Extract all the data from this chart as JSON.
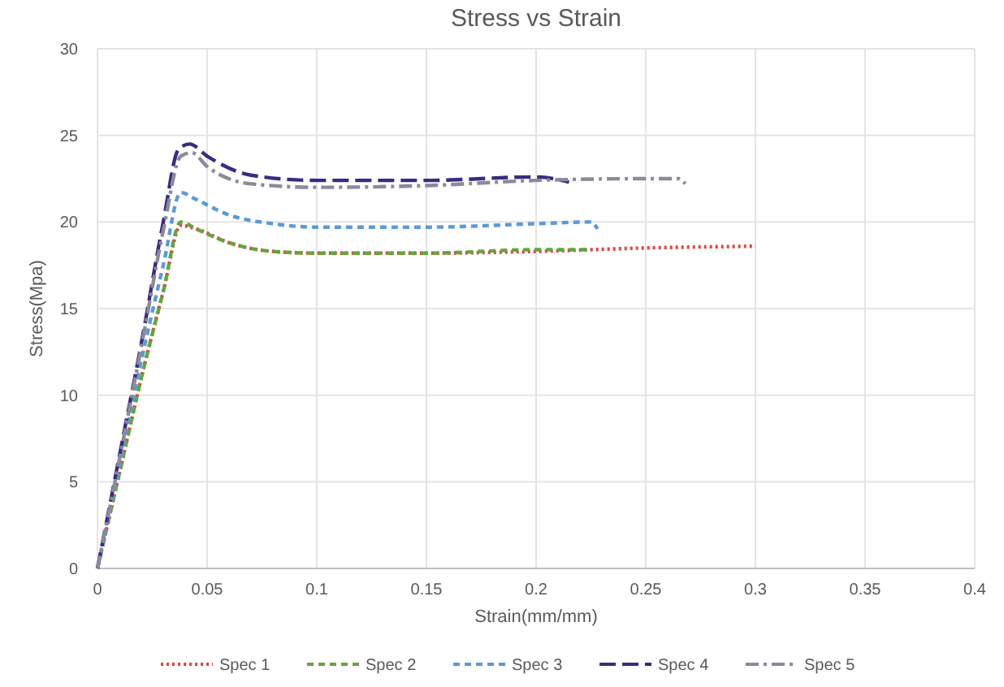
{
  "chart_data": {
    "type": "line",
    "title": "Stress vs Strain",
    "xlabel": "Strain(mm/mm)",
    "ylabel": "Stress(Mpa)",
    "xlim": [
      0,
      0.4
    ],
    "xticks": [
      0,
      0.05,
      0.1,
      0.15,
      0.2,
      0.25,
      0.3,
      0.35,
      0.4
    ],
    "ylim": [
      0,
      30
    ],
    "yticks": [
      0,
      5,
      10,
      15,
      20,
      25,
      30
    ],
    "grid": true,
    "legend": "bottom",
    "series": [
      {
        "name": "Spec 1",
        "color": "#e0443c",
        "line_style": "dotted",
        "x": [
          0,
          0.01,
          0.02,
          0.03,
          0.038,
          0.045,
          0.06,
          0.08,
          0.1,
          0.15,
          0.2,
          0.25,
          0.3
        ],
        "values": [
          0,
          5.5,
          11,
          16,
          19.8,
          19.6,
          18.8,
          18.3,
          18.2,
          18.2,
          18.3,
          18.5,
          18.6
        ]
      },
      {
        "name": "Spec 2",
        "color": "#5fa83a",
        "line_style": "dashed",
        "x": [
          0,
          0.01,
          0.02,
          0.03,
          0.038,
          0.045,
          0.06,
          0.08,
          0.1,
          0.15,
          0.2,
          0.225
        ],
        "values": [
          0,
          5.5,
          11,
          16,
          20,
          19.6,
          18.8,
          18.3,
          18.2,
          18.2,
          18.4,
          18.4
        ]
      },
      {
        "name": "Spec 3",
        "color": "#5b9bd5",
        "line_style": "dashed",
        "x": [
          0,
          0.01,
          0.02,
          0.03,
          0.038,
          0.045,
          0.06,
          0.08,
          0.1,
          0.15,
          0.2,
          0.225,
          0.228
        ],
        "values": [
          0,
          6,
          12,
          17.5,
          21.7,
          21.3,
          20.4,
          19.9,
          19.7,
          19.7,
          19.9,
          20,
          19.6
        ]
      },
      {
        "name": "Spec 4",
        "color": "#3b2a80",
        "line_style": "longdash",
        "x": [
          0,
          0.01,
          0.02,
          0.03,
          0.037,
          0.042,
          0.05,
          0.07,
          0.1,
          0.15,
          0.2,
          0.215
        ],
        "values": [
          0,
          6.5,
          13,
          20,
          24.2,
          24.5,
          23.8,
          22.7,
          22.4,
          22.4,
          22.6,
          22.3
        ]
      },
      {
        "name": "Spec 5",
        "color": "#8a8a9a",
        "line_style": "dashdot",
        "x": [
          0,
          0.01,
          0.02,
          0.03,
          0.038,
          0.043,
          0.05,
          0.07,
          0.1,
          0.15,
          0.2,
          0.25,
          0.265,
          0.268
        ],
        "values": [
          0,
          6.3,
          12.8,
          19.5,
          23.8,
          24,
          23.2,
          22.2,
          22,
          22.1,
          22.4,
          22.5,
          22.5,
          22.2
        ]
      }
    ]
  }
}
